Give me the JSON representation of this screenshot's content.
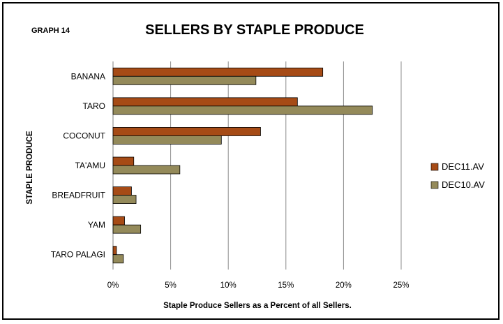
{
  "graph_label": "GRAPH 14",
  "chart_data": {
    "type": "bar",
    "orientation": "horizontal",
    "title": "SELLERS BY STAPLE PRODUCE",
    "xlabel": "Staple Produce Sellers as a Percent of all Sellers.",
    "ylabel": "STAPLE PRODUCE",
    "categories": [
      "BANANA",
      "TARO",
      "COCONUT",
      "TA'AMU",
      "BREADFRUIT",
      "YAM",
      "TARO PALAGI"
    ],
    "series": [
      {
        "name": "DEC11.AV",
        "color": "#a64b16",
        "values": [
          18.2,
          16.0,
          12.8,
          1.8,
          1.6,
          1.0,
          0.3
        ]
      },
      {
        "name": "DEC10.AV",
        "color": "#948a5a",
        "values": [
          12.4,
          22.5,
          9.4,
          5.8,
          2.0,
          2.4,
          0.9
        ]
      }
    ],
    "xlim": [
      0,
      25
    ],
    "xticks": [
      0,
      5,
      10,
      15,
      20,
      25
    ],
    "tick_format": "{v}%",
    "grid": true,
    "legend_position": "right"
  }
}
